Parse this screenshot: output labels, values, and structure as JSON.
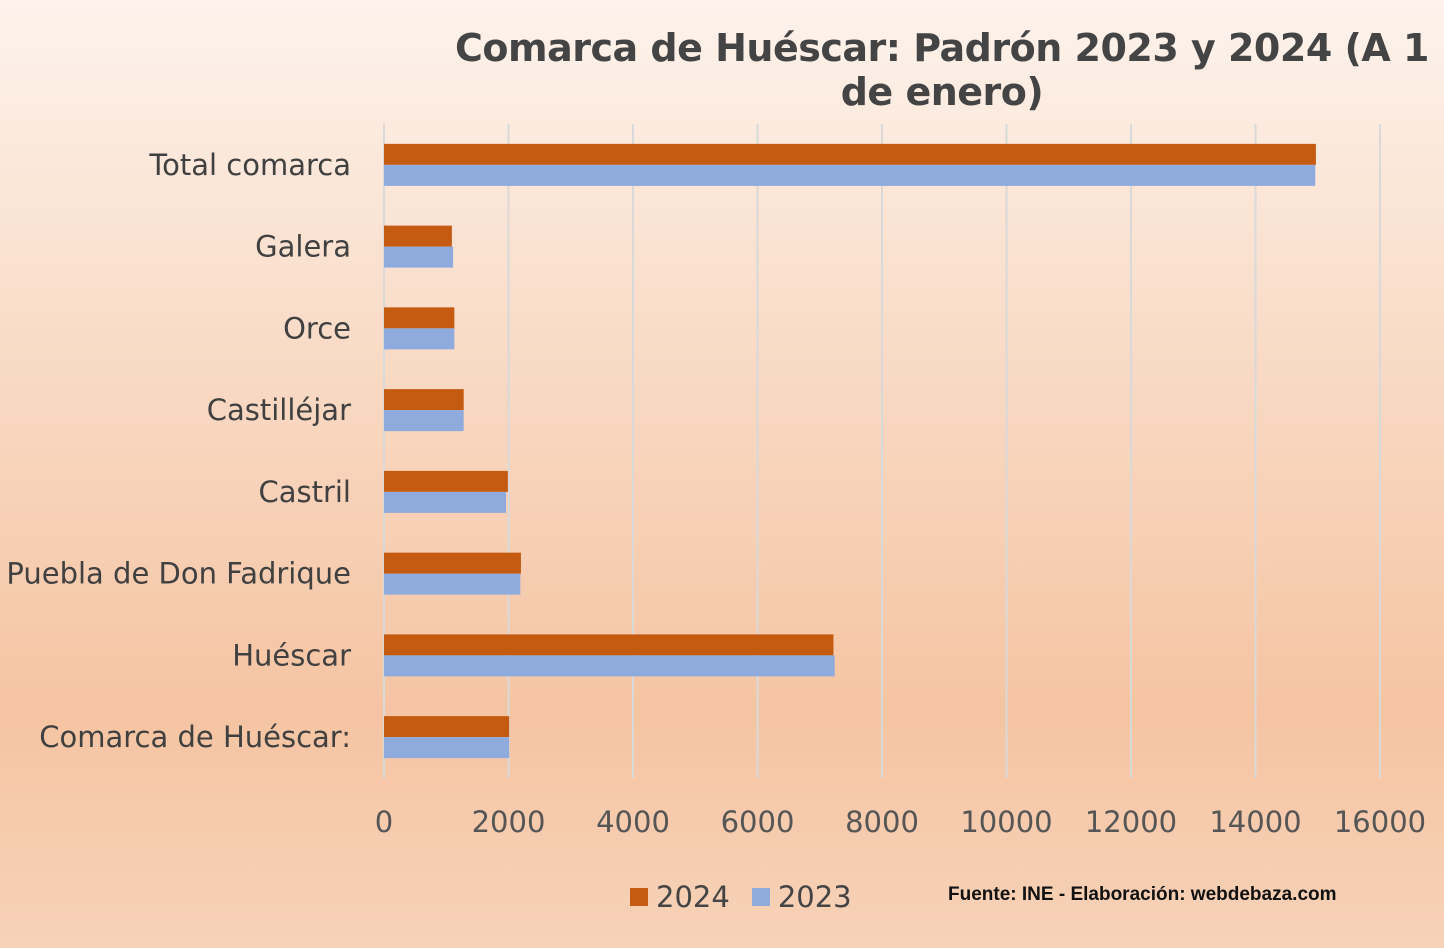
{
  "chart_data": {
    "type": "bar",
    "orientation": "horizontal",
    "title": "Comarca de Huéscar: Padrón 2023 y 2024 (A 1 de enero)",
    "categories": [
      "Total comarca",
      "Galera",
      "Orce",
      "Castilléjar",
      "Castril",
      "Puebla de Don Fadrique",
      "Huéscar",
      "Comarca de Huéscar:"
    ],
    "series": [
      {
        "name": "2024",
        "color": "#c55a11",
        "values": [
          14970,
          1090,
          1130,
          1280,
          1990,
          2200,
          7220,
          2010
        ]
      },
      {
        "name": "2023",
        "color": "#8faadc",
        "values": [
          14960,
          1110,
          1130,
          1280,
          1960,
          2190,
          7240,
          2010
        ]
      }
    ],
    "xlim": [
      0,
      16000
    ],
    "xticks": [
      "0",
      "2000",
      "4000",
      "6000",
      "8000",
      "10000",
      "12000",
      "14000",
      "16000"
    ],
    "grid": true,
    "legend_position": "bottom"
  },
  "legend": [
    {
      "label": "2024",
      "color": "#c55a11"
    },
    {
      "label": "2023",
      "color": "#8faadc"
    }
  ],
  "source_note": "Fuente: INE - Elaboración: webdebaza.com"
}
